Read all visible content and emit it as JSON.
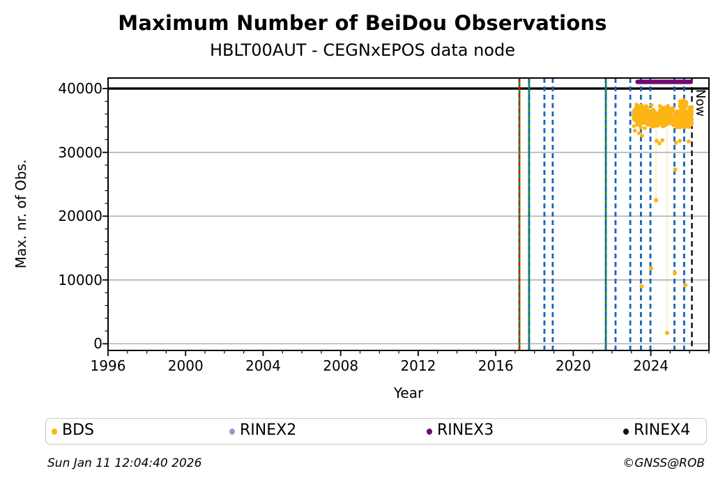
{
  "footer": {
    "timestamp": "Sun Jan 11 12:04:40 2026",
    "copyright": "©GNSS@ROB"
  },
  "chart_data": {
    "type": "scatter",
    "title": "Maximum Number of BeiDou Observations",
    "subtitle": "HBLT00AUT - CEGNxEPOS data node",
    "xlabel": "Year",
    "ylabel": "Max. nr. of Obs.",
    "xlim": [
      1996,
      2027
    ],
    "ylim": [
      -1050,
      41650
    ],
    "x_major_ticks": [
      1996,
      2000,
      2004,
      2008,
      2012,
      2016,
      2020,
      2024
    ],
    "x_minor_step_years": 1,
    "y_major_ticks": [
      0,
      10000,
      20000,
      30000,
      40000
    ],
    "y_minor_step": 2000,
    "grid_values": [
      0,
      10000,
      20000,
      30000
    ],
    "grid_on": true,
    "threshold_line": {
      "value": 40000,
      "color": "#000000"
    },
    "now_line": {
      "year": 2026.12,
      "label": "Now",
      "color": "#000000"
    },
    "rinex3_bar": {
      "start_year": 2023.21,
      "end_year": 2026.15,
      "value": 41050,
      "color": "#730a70"
    },
    "event_lines": [
      {
        "year": 2017.22,
        "styles": [
          "green-solid",
          "red-dashed"
        ]
      },
      {
        "year": 2017.72,
        "styles": [
          "green-solid",
          "blue-dashed"
        ]
      },
      {
        "year": 2018.51,
        "styles": [
          "blue-dashed"
        ]
      },
      {
        "year": 2018.94,
        "styles": [
          "blue-dashed"
        ]
      },
      {
        "year": 2021.68,
        "styles": [
          "green-solid",
          "blue-dashed"
        ]
      },
      {
        "year": 2022.18,
        "styles": [
          "blue-dashed"
        ]
      },
      {
        "year": 2022.94,
        "styles": [
          "blue-dashed"
        ]
      },
      {
        "year": 2023.49,
        "styles": [
          "blue-dashed"
        ]
      },
      {
        "year": 2023.98,
        "styles": [
          "blue-dashed"
        ]
      },
      {
        "year": 2025.22,
        "styles": [
          "blue-dashed"
        ]
      },
      {
        "year": 2025.72,
        "styles": [
          "blue-dashed"
        ]
      }
    ],
    "line_colors": {
      "blue_dashed": "#1666b4",
      "green_solid": "#1e8c1e",
      "red_dashed": "#e50000",
      "grid": "#b0b0b0"
    },
    "legend": {
      "position": "bottom",
      "entries": [
        {
          "label": "BDS",
          "color": "#fdb515"
        },
        {
          "label": "RINEX2",
          "color": "#9b98c8"
        },
        {
          "label": "RINEX3",
          "color": "#730a70"
        },
        {
          "label": "RINEX4",
          "color": "#200a20"
        }
      ]
    },
    "bds_series": {
      "name": "BDS",
      "color": "#fdb515",
      "band": {
        "start_year": 2023.1,
        "end_year": 2026.13,
        "n_points": 480,
        "y_mean": 35500,
        "y_spread": 1400,
        "seed": 20260111
      },
      "bumps": [
        {
          "start": 2023.25,
          "end": 2023.6,
          "y_center": 36900,
          "y_spread": 650,
          "n": 50
        },
        {
          "start": 2024.45,
          "end": 2024.8,
          "y_center": 36300,
          "y_spread": 500,
          "n": 28
        },
        {
          "start": 2025.5,
          "end": 2025.85,
          "y_center": 37500,
          "y_spread": 750,
          "n": 52
        },
        {
          "start": 2025.98,
          "end": 2026.12,
          "y_center": 36800,
          "y_spread": 500,
          "n": 16
        }
      ],
      "low_points": [
        [
          2023.18,
          33400
        ],
        [
          2023.4,
          33000
        ],
        [
          2023.55,
          32600
        ],
        [
          2024.3,
          31800
        ],
        [
          2024.45,
          31400
        ],
        [
          2024.6,
          31900
        ],
        [
          2025.3,
          31500
        ],
        [
          2025.5,
          31800
        ],
        [
          2025.95,
          31700
        ]
      ],
      "outliers": [
        [
          2023.53,
          9000
        ],
        [
          2024.02,
          11800
        ],
        [
          2024.27,
          22500
        ],
        [
          2024.84,
          1700
        ],
        [
          2025.24,
          11100
        ],
        [
          2025.26,
          27300
        ],
        [
          2025.78,
          9200
        ]
      ],
      "trails": [
        {
          "year": 2024.27,
          "from": 34500,
          "to": 22500
        },
        {
          "year": 2024.84,
          "from": 34500,
          "to": 1700
        }
      ]
    }
  }
}
